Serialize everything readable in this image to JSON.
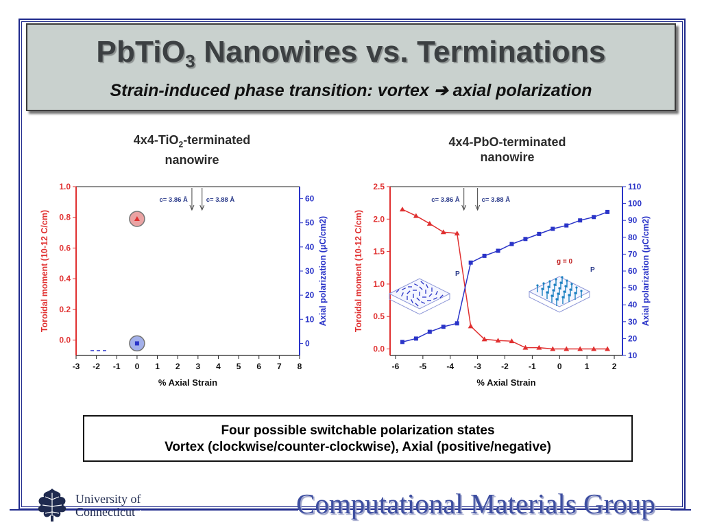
{
  "slide": {
    "title_main": "PbTiO",
    "title_sub3": "3",
    "title_rest": " Nanowires vs. Terminations",
    "subtitle": "Strain-induced phase transition: vortex ➔ axial polarization",
    "left_panel_title_a": "4x4-TiO",
    "left_panel_title_sub": "2",
    "left_panel_title_b": "-terminated",
    "left_panel_title_c": "nanowire",
    "right_panel_title_a": "4x4-PbO-terminated",
    "right_panel_title_b": "nanowire",
    "caption_line1": "Four possible switchable polarization states",
    "caption_line2": "Vortex (clockwise/counter-clockwise), Axial (positive/negative)",
    "footer_univ_line1": "University of",
    "footer_univ_line2": "Connecticut",
    "footer_group": "Computational Materials Group"
  },
  "colors": {
    "red": "#e03030",
    "blue": "#2a34c8",
    "frame": "#1f2a8c"
  },
  "chart_data": [
    {
      "type": "scatter",
      "title": "4x4-TiO2-terminated nanowire",
      "xlabel": "% Axial Strain",
      "ylabel_left": "Toroidal moment (10-12 C/cm)",
      "ylabel_right": "Axial polarization (μC/cm2)",
      "xlim": [
        -3,
        8
      ],
      "ylim_left": [
        -0.1,
        1.0
      ],
      "ylim_right": [
        -5,
        65
      ],
      "xticks": [
        "-3",
        "-2",
        "-1",
        "0",
        "1",
        "2",
        "3",
        "4",
        "5",
        "6",
        "7",
        "8"
      ],
      "yticks_left": [
        "0.0",
        "0.2",
        "0.4",
        "0.6",
        "0.8",
        "1.0"
      ],
      "yticks_right": [
        "0",
        "10",
        "20",
        "30",
        "40",
        "50",
        "60"
      ],
      "annotations": [
        "c= 3.86 Å",
        "c= 3.88 Å"
      ],
      "series": [
        {
          "axis": "left",
          "color": "red",
          "x": [
            0
          ],
          "y": [
            0.79
          ]
        },
        {
          "axis": "right",
          "color": "blue",
          "x": [
            0
          ],
          "y": [
            0
          ]
        }
      ]
    },
    {
      "type": "line",
      "title": "4x4-PbO-terminated nanowire",
      "xlabel": "% Axial Strain",
      "ylabel_left": "Toroidal moment (10-12 C/cm)",
      "ylabel_right": "Axial polarization (μC/cm2)",
      "xlim": [
        -6.2,
        2.3
      ],
      "ylim_left": [
        -0.1,
        2.5
      ],
      "ylim_right": [
        10,
        110
      ],
      "xticks": [
        "-6",
        "-5",
        "-4",
        "-3",
        "-2",
        "-1",
        "0",
        "1",
        "2"
      ],
      "yticks_left": [
        "0.0",
        "0.5",
        "1.0",
        "1.5",
        "2.0",
        "2.5"
      ],
      "yticks_right": [
        "10",
        "20",
        "30",
        "40",
        "50",
        "60",
        "70",
        "80",
        "90",
        "100",
        "110"
      ],
      "annotations": [
        "c= 3.86 Å",
        "c= 3.88 Å",
        "g = 0"
      ],
      "series": [
        {
          "axis": "left",
          "color": "red",
          "x": [
            -5.75,
            -5.25,
            -4.75,
            -4.25,
            -3.75,
            -3.25,
            -2.75,
            -2.25,
            -1.75,
            -1.25,
            -0.75,
            -0.25,
            0.25,
            0.75,
            1.25,
            1.75
          ],
          "y": [
            2.15,
            2.05,
            1.93,
            1.8,
            1.78,
            0.35,
            0.15,
            0.13,
            0.12,
            0.02,
            0.02,
            0.0,
            0.0,
            0.0,
            0.0,
            0.0
          ]
        },
        {
          "axis": "right",
          "color": "blue",
          "x": [
            -5.75,
            -5.25,
            -4.75,
            -4.25,
            -3.75,
            -3.25,
            -2.75,
            -2.25,
            -1.75,
            -1.25,
            -0.75,
            -0.25,
            0.25,
            0.75,
            1.25,
            1.75
          ],
          "y": [
            18,
            20,
            24,
            27,
            29,
            65,
            69,
            72,
            76,
            79,
            82,
            85,
            87,
            90,
            92,
            95
          ]
        }
      ]
    }
  ]
}
